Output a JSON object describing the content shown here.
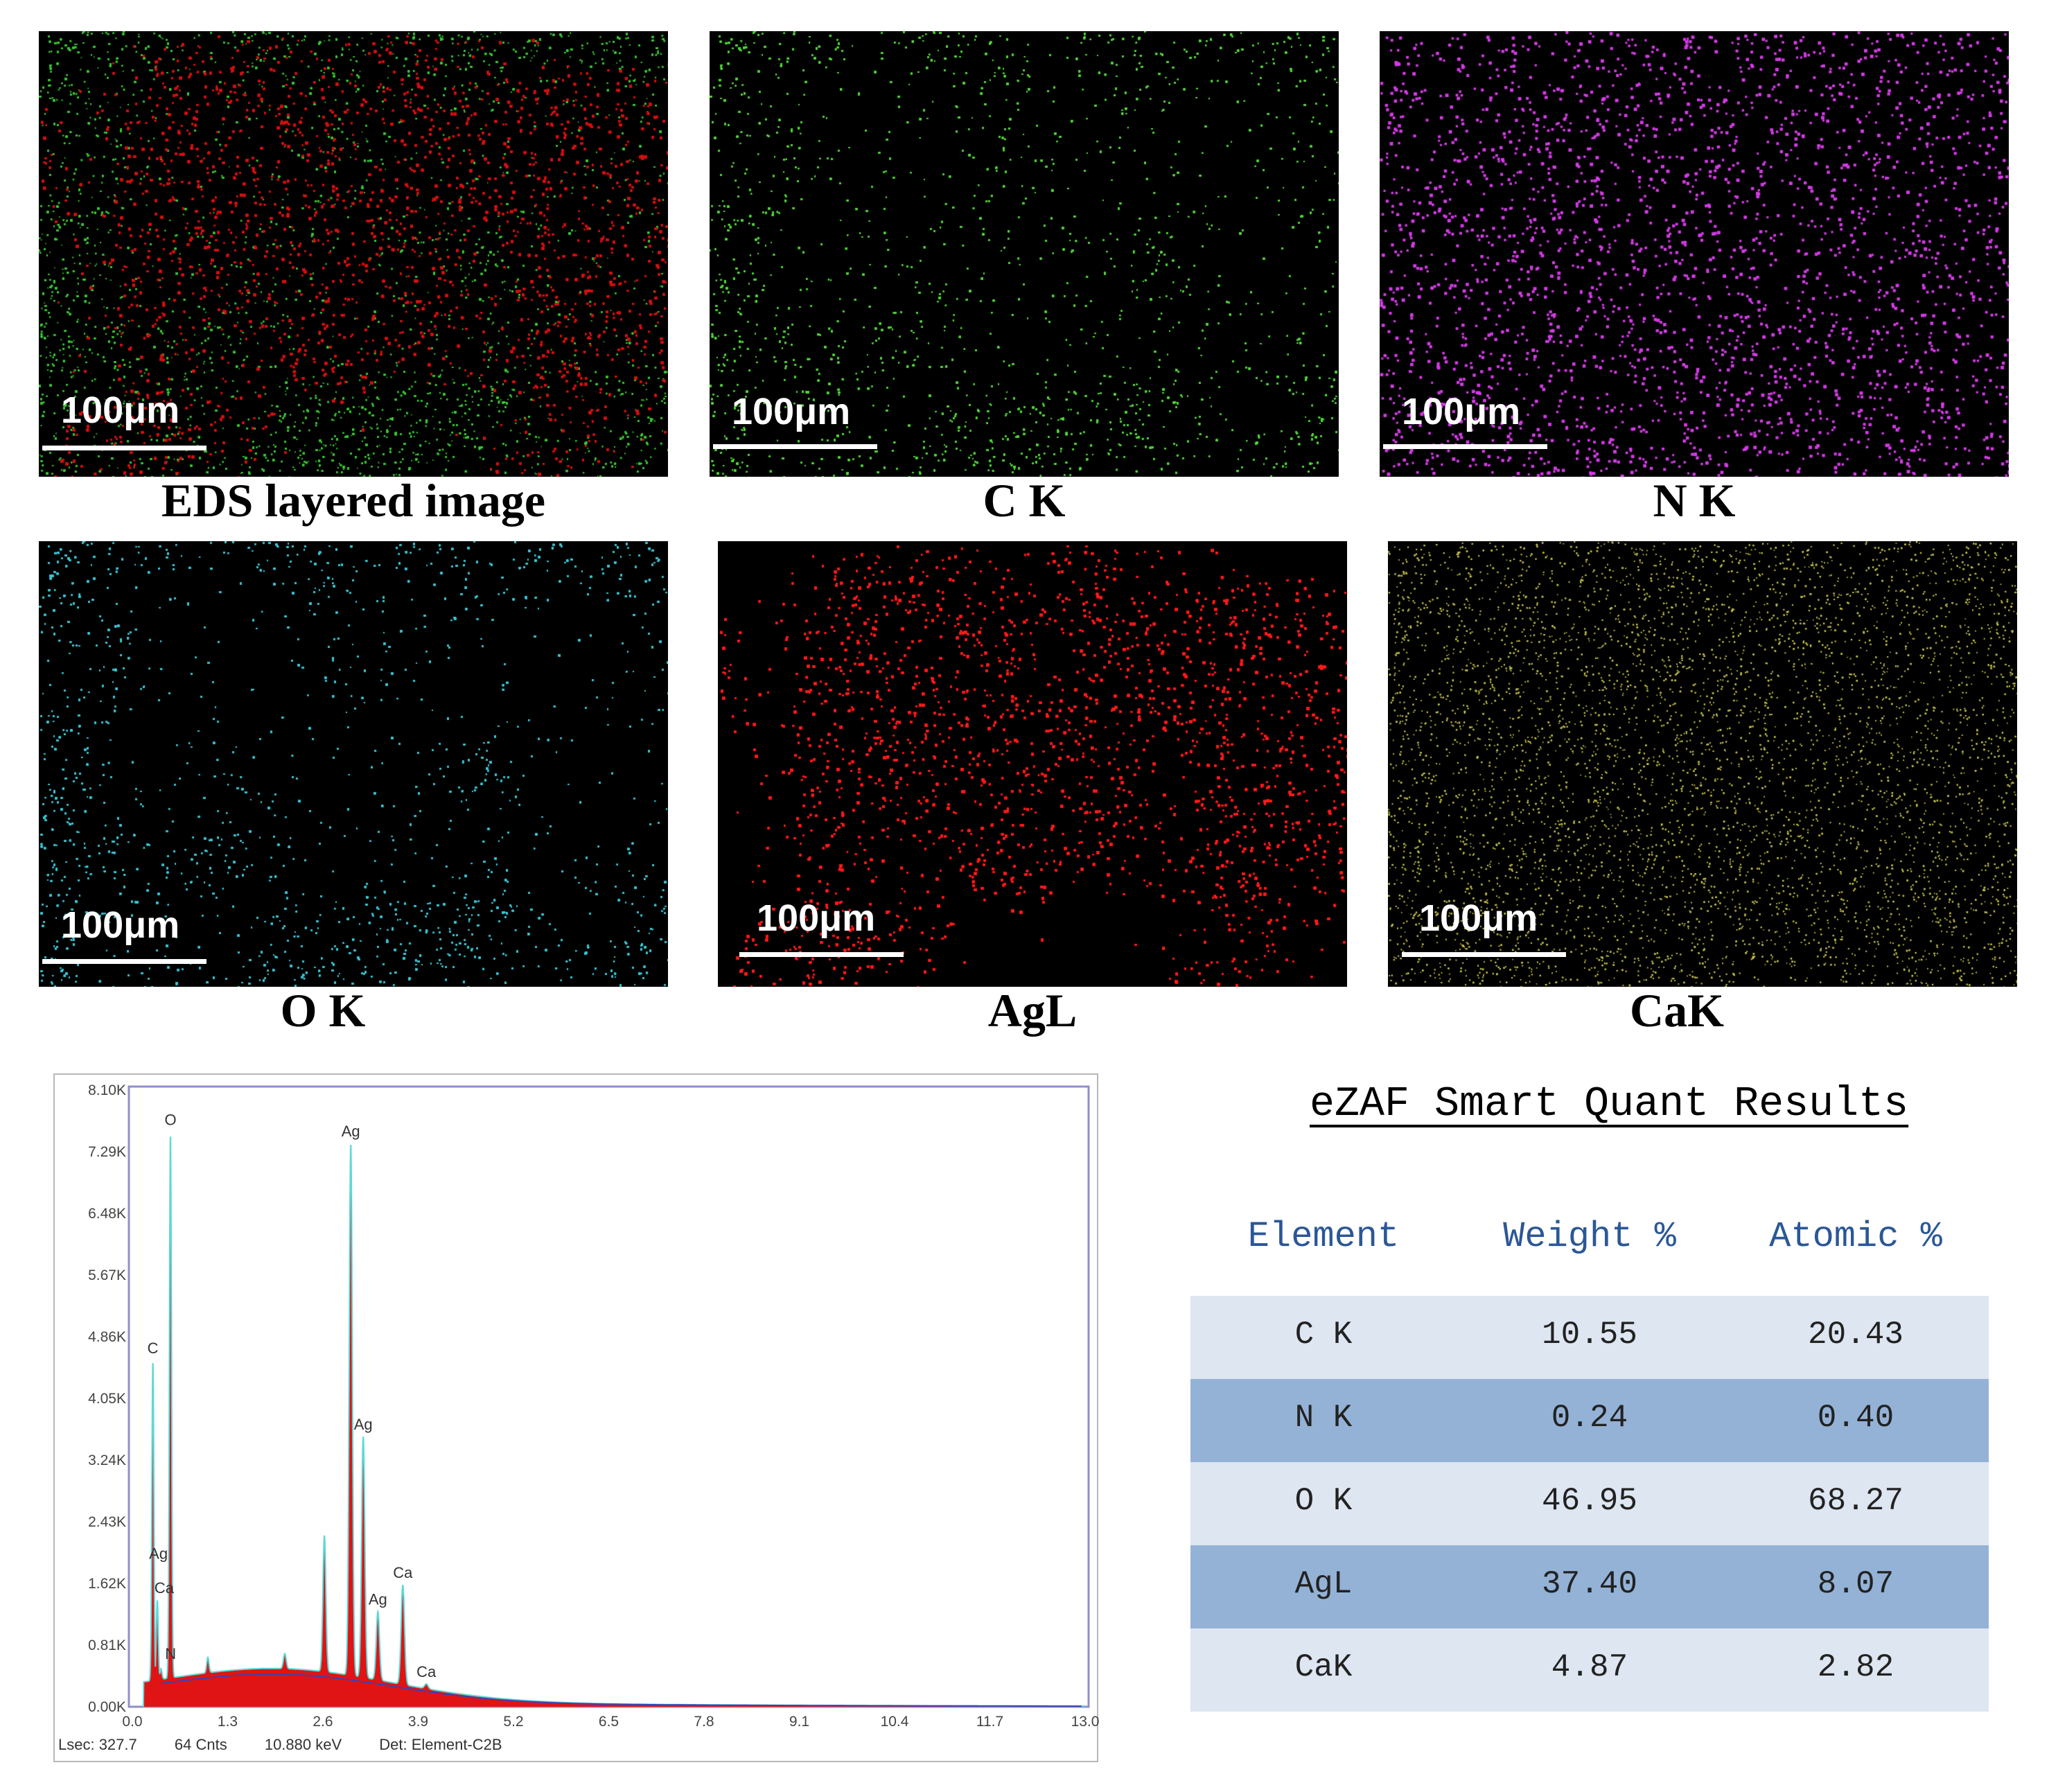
{
  "panels": [
    {
      "id": "layered",
      "caption": "EDS layered image",
      "scalebar": "100μm",
      "colors": [
        "#d11010",
        "#39c832"
      ]
    },
    {
      "id": "ck",
      "caption": "C K",
      "scalebar": "100μm",
      "colors": [
        "#52d83a"
      ]
    },
    {
      "id": "nk",
      "caption": "N K",
      "scalebar": "100μm",
      "colors": [
        "#d43ae6"
      ]
    },
    {
      "id": "ok",
      "caption": "O K",
      "scalebar": "100μm",
      "colors": [
        "#3cc7d6"
      ]
    },
    {
      "id": "agl",
      "caption": "AgL",
      "scalebar": "100μm",
      "colors": [
        "#ff1a1a"
      ]
    },
    {
      "id": "cak",
      "caption": "CaK",
      "scalebar": "100μm",
      "colors": [
        "#c8c44a"
      ]
    }
  ],
  "chart_data": {
    "type": "line",
    "xlim": [
      0.0,
      13.0
    ],
    "ylim": [
      0,
      8100
    ],
    "x_ticks": [
      "0.0",
      "1.3",
      "2.6",
      "3.9",
      "5.2",
      "6.5",
      "7.8",
      "9.1",
      "10.4",
      "11.7",
      "13.0"
    ],
    "y_ticks": [
      "0.00K",
      "0.81K",
      "1.62K",
      "2.43K",
      "3.24K",
      "4.05K",
      "4.86K",
      "5.67K",
      "6.48K",
      "7.29K",
      "8.10K"
    ],
    "peaks": [
      {
        "label": "C",
        "x": 0.28,
        "y": 4550
      },
      {
        "label": "N",
        "x": 0.39,
        "y": 500
      },
      {
        "label": "O",
        "x": 0.52,
        "y": 7550
      },
      {
        "label": "Ag",
        "x": 0.28,
        "y": 1850
      },
      {
        "label": "Ca",
        "x": 0.34,
        "y": 1400
      },
      {
        "label": "Ag",
        "x": 2.98,
        "y": 7400
      },
      {
        "label": "Ag",
        "x": 3.15,
        "y": 3550
      },
      {
        "label": "Ag",
        "x": 3.35,
        "y": 1250
      },
      {
        "label": "Ca",
        "x": 3.69,
        "y": 1600
      },
      {
        "label": "Ca",
        "x": 4.01,
        "y": 300
      }
    ],
    "minor_peaks": [
      {
        "x": 1.03,
        "y": 650
      },
      {
        "x": 2.08,
        "y": 700
      },
      {
        "x": 2.62,
        "y": 2250
      }
    ],
    "footer": {
      "lsec": "Lsec: 327.7",
      "cnts": "64 Cnts",
      "kev": "10.880 keV",
      "det": "Det: Element-C2B"
    }
  },
  "quant": {
    "title": "eZAF Smart Quant Results",
    "headers": [
      "Element",
      "Weight %",
      "Atomic %"
    ],
    "rows": [
      [
        "C K",
        "10.55",
        "20.43"
      ],
      [
        "N K",
        "0.24",
        "0.40"
      ],
      [
        "O K",
        "46.95",
        "68.27"
      ],
      [
        "AgL",
        "37.40",
        "8.07"
      ],
      [
        "CaK",
        "4.87",
        "2.82"
      ]
    ]
  }
}
